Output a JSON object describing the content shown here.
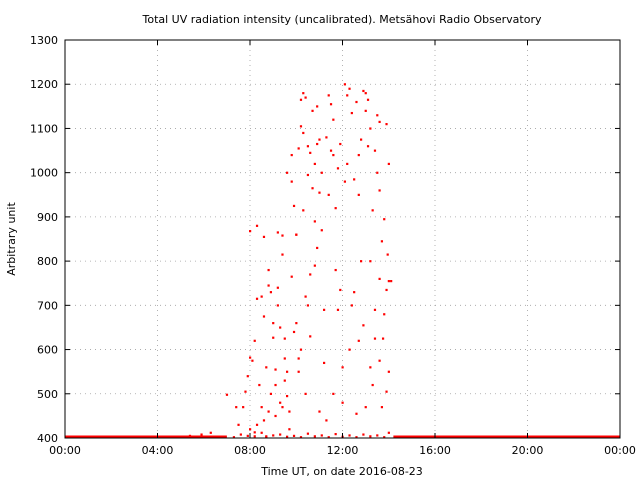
{
  "chart_data": {
    "type": "scatter",
    "title": "Total UV radiation intensity (uncalibrated). Metsähovi Radio Observatory",
    "xlabel": "Time UT, on date 2016-08-23",
    "ylabel": "Arbitrary unit",
    "xlim": [
      0,
      24
    ],
    "ylim": [
      400,
      1300
    ],
    "x_ticks": [
      0,
      4,
      8,
      12,
      16,
      20,
      24
    ],
    "x_tick_labels": [
      "00:00",
      "04:00",
      "08:00",
      "12:00",
      "16:00",
      "20:00",
      "00:00"
    ],
    "y_ticks": [
      400,
      500,
      600,
      700,
      800,
      900,
      1000,
      1100,
      1200,
      1300
    ],
    "y_tick_labels": [
      "400",
      "500",
      "600",
      "700",
      "800",
      "900",
      "1000",
      "1100",
      "1200",
      "1300"
    ],
    "grid": true,
    "marker_color": "#ff0000",
    "baseline_segments": [
      {
        "x_start": 0,
        "x_end": 7.0,
        "y": 400
      },
      {
        "x_start": 14.2,
        "x_end": 24,
        "y": 400
      }
    ],
    "series": [
      {
        "values": [
          [
            5.4,
            405
          ],
          [
            5.9,
            408
          ],
          [
            6.3,
            412
          ],
          [
            6.7,
            402
          ],
          [
            7.0,
            498
          ],
          [
            7.3,
            402
          ],
          [
            7.4,
            470
          ],
          [
            7.6,
            408
          ],
          [
            7.8,
            505
          ],
          [
            7.9,
            540
          ],
          [
            7.9,
            405
          ],
          [
            8.0,
            582
          ],
          [
            8.0,
            868
          ],
          [
            8.1,
            575
          ],
          [
            8.2,
            413
          ],
          [
            8.3,
            880
          ],
          [
            8.3,
            715
          ],
          [
            8.4,
            520
          ],
          [
            8.5,
            470
          ],
          [
            8.6,
            855
          ],
          [
            8.6,
            675
          ],
          [
            8.7,
            560
          ],
          [
            8.7,
            404
          ],
          [
            8.8,
            780
          ],
          [
            8.8,
            745
          ],
          [
            8.9,
            730
          ],
          [
            9.0,
            660
          ],
          [
            9.0,
            627
          ],
          [
            9.1,
            555
          ],
          [
            9.1,
            520
          ],
          [
            9.2,
            865
          ],
          [
            9.2,
            700
          ],
          [
            9.3,
            650
          ],
          [
            9.3,
            480
          ],
          [
            9.4,
            858
          ],
          [
            9.4,
            815
          ],
          [
            9.5,
            625
          ],
          [
            9.5,
            530
          ],
          [
            9.6,
            1000
          ],
          [
            9.6,
            495
          ],
          [
            9.7,
            420
          ],
          [
            9.8,
            1040
          ],
          [
            9.8,
            765
          ],
          [
            9.9,
            925
          ],
          [
            10.0,
            860
          ],
          [
            10.0,
            660
          ],
          [
            10.1,
            1055
          ],
          [
            10.1,
            580
          ],
          [
            10.2,
            1165
          ],
          [
            10.2,
            1105
          ],
          [
            10.3,
            1180
          ],
          [
            10.3,
            915
          ],
          [
            10.4,
            1170
          ],
          [
            10.4,
            720
          ],
          [
            10.5,
            1060
          ],
          [
            10.5,
            995
          ],
          [
            10.6,
            1045
          ],
          [
            10.6,
            770
          ],
          [
            10.7,
            965
          ],
          [
            10.8,
            1020
          ],
          [
            10.8,
            890
          ],
          [
            10.9,
            1065
          ],
          [
            10.9,
            830
          ],
          [
            11.0,
            1075
          ],
          [
            11.0,
            955
          ],
          [
            11.1,
            1000
          ],
          [
            11.1,
            870
          ],
          [
            11.2,
            570
          ],
          [
            11.3,
            1080
          ],
          [
            11.4,
            1175
          ],
          [
            11.5,
            1155
          ],
          [
            11.6,
            1120
          ],
          [
            11.6,
            1040
          ],
          [
            11.7,
            920
          ],
          [
            11.8,
            690
          ],
          [
            11.9,
            1065
          ],
          [
            11.9,
            735
          ],
          [
            12.0,
            480
          ],
          [
            12.1,
            1200
          ],
          [
            12.2,
            1175
          ],
          [
            12.3,
            1190
          ],
          [
            12.4,
            1135
          ],
          [
            12.5,
            730
          ],
          [
            12.6,
            1160
          ],
          [
            12.7,
            1040
          ],
          [
            12.8,
            1075
          ],
          [
            12.9,
            1185
          ],
          [
            13.0,
            1180
          ],
          [
            13.1,
            1165
          ],
          [
            13.2,
            1100
          ],
          [
            13.3,
            915
          ],
          [
            13.4,
            1050
          ],
          [
            13.5,
            1130
          ],
          [
            13.5,
            1000
          ],
          [
            13.6,
            1115
          ],
          [
            13.7,
            845
          ],
          [
            13.8,
            895
          ],
          [
            13.9,
            1110
          ],
          [
            14.0,
            1020
          ],
          [
            14.0,
            755
          ],
          [
            13.1,
            1060
          ],
          [
            12.7,
            950
          ],
          [
            12.9,
            655
          ],
          [
            13.4,
            625
          ],
          [
            13.6,
            575
          ],
          [
            13.8,
            680
          ],
          [
            14.0,
            550
          ],
          [
            13.9,
            505
          ],
          [
            13.2,
            800
          ],
          [
            12.3,
            600
          ],
          [
            12.0,
            560
          ],
          [
            11.6,
            500
          ],
          [
            11.3,
            440
          ],
          [
            10.8,
            790
          ],
          [
            10.5,
            700
          ],
          [
            10.2,
            600
          ],
          [
            9.9,
            640
          ],
          [
            9.6,
            550
          ],
          [
            9.4,
            470
          ],
          [
            9.1,
            450
          ],
          [
            8.9,
            500
          ],
          [
            8.6,
            440
          ],
          [
            8.3,
            430
          ],
          [
            12.6,
            455
          ],
          [
            13.0,
            470
          ],
          [
            13.3,
            520
          ],
          [
            13.7,
            470
          ],
          [
            11.0,
            460
          ],
          [
            10.4,
            500
          ],
          [
            9.7,
            460
          ],
          [
            8.8,
            460
          ],
          [
            13.6,
            760
          ],
          [
            13.9,
            735
          ],
          [
            12.8,
            800
          ],
          [
            11.7,
            780
          ],
          [
            10.0,
            860
          ],
          [
            9.2,
            740
          ],
          [
            8.5,
            720
          ],
          [
            8.2,
            620
          ],
          [
            7.7,
            470
          ],
          [
            7.5,
            430
          ],
          [
            13.4,
            690
          ],
          [
            12.4,
            700
          ],
          [
            11.2,
            690
          ],
          [
            10.6,
            630
          ],
          [
            10.1,
            550
          ],
          [
            9.5,
            580
          ],
          [
            13.2,
            560
          ],
          [
            12.7,
            620
          ],
          [
            8.0,
            420
          ],
          [
            8.2,
            404
          ],
          [
            8.5,
            412
          ],
          [
            8.7,
            402
          ],
          [
            9.0,
            406
          ],
          [
            9.3,
            408
          ],
          [
            9.6,
            403
          ],
          [
            9.9,
            405
          ],
          [
            10.2,
            402
          ],
          [
            10.5,
            410
          ],
          [
            10.8,
            404
          ],
          [
            11.1,
            406
          ],
          [
            11.4,
            402
          ],
          [
            11.7,
            409
          ],
          [
            12.0,
            403
          ],
          [
            12.3,
            406
          ],
          [
            12.6,
            402
          ],
          [
            12.9,
            408
          ],
          [
            13.2,
            404
          ],
          [
            13.5,
            406
          ],
          [
            13.8,
            402
          ],
          [
            14.0,
            412
          ],
          [
            11.5,
            1050
          ],
          [
            12.2,
            1020
          ],
          [
            10.9,
            1150
          ],
          [
            13.0,
            1140
          ],
          [
            11.8,
            1010
          ],
          [
            12.5,
            985
          ],
          [
            10.7,
            1140
          ],
          [
            13.6,
            960
          ],
          [
            11.4,
            950
          ],
          [
            12.1,
            980
          ],
          [
            10.3,
            1090
          ],
          [
            9.8,
            980
          ],
          [
            14.1,
            755
          ],
          [
            13.95,
            815
          ],
          [
            13.75,
            625
          ]
        ]
      }
    ]
  }
}
